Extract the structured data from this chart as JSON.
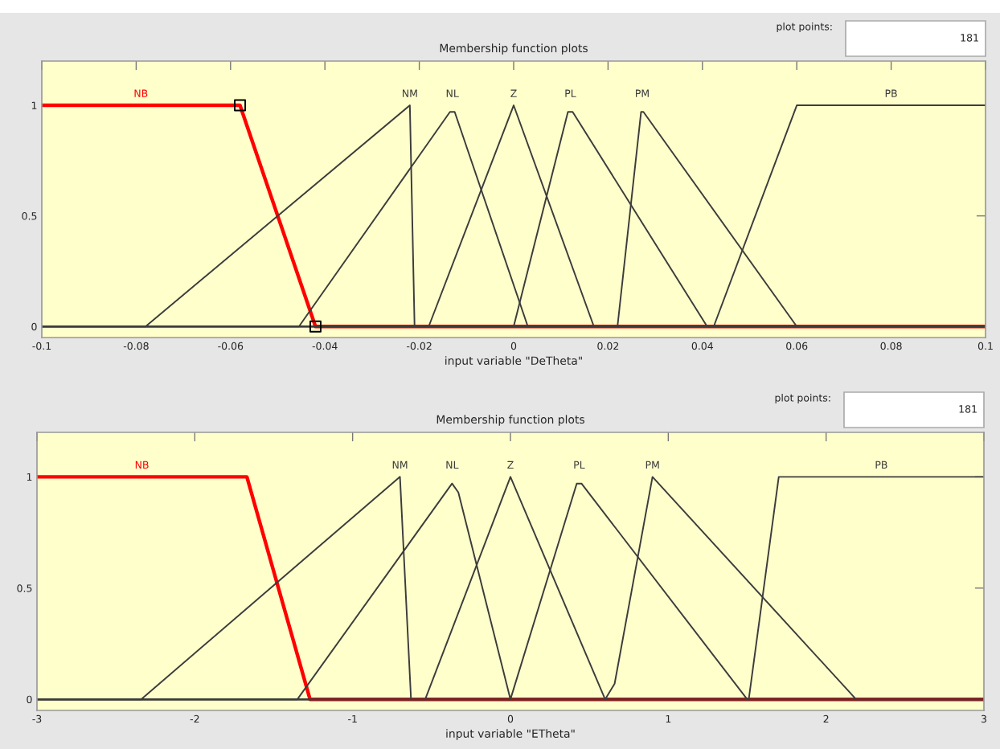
{
  "chart_data": [
    {
      "type": "line",
      "title": "Membership function plots",
      "xlabel": "input variable \"DeTheta\"",
      "xlim": [
        -0.1,
        0.1
      ],
      "xticks": [
        -0.1,
        -0.08,
        -0.06,
        -0.04,
        -0.02,
        0,
        0.02,
        0.04,
        0.06,
        0.08,
        0.1
      ],
      "ylim": [
        -0.05,
        1.2
      ],
      "yticks": [
        0,
        0.5,
        1
      ],
      "grid": false,
      "legend": false,
      "series": [
        {
          "name": "NB",
          "color": "#ff0000",
          "x": [
            -0.1,
            -0.058,
            -0.042,
            0.1
          ],
          "values": [
            1,
            1,
            0,
            0
          ]
        },
        {
          "name": "NM",
          "color": "#3c3c3c",
          "x": [
            -0.1,
            -0.078,
            -0.022,
            -0.021,
            0.1
          ],
          "values": [
            0,
            0,
            1,
            0,
            0
          ]
        },
        {
          "name": "NL",
          "color": "#3c3c3c",
          "x": [
            -0.1,
            -0.0455,
            -0.0135,
            -0.0125,
            0.003,
            0.1
          ],
          "values": [
            0,
            0,
            0.97,
            0.97,
            0,
            0
          ]
        },
        {
          "name": "Z",
          "color": "#3c3c3c",
          "x": [
            -0.1,
            -0.018,
            0,
            0.017,
            0.1
          ],
          "values": [
            0,
            0,
            1,
            0,
            0
          ]
        },
        {
          "name": "PL",
          "color": "#3c3c3c",
          "x": [
            -0.1,
            0,
            0.0115,
            0.0125,
            0.041,
            0.1
          ],
          "values": [
            0,
            0,
            0.97,
            0.97,
            0,
            0
          ]
        },
        {
          "name": "PM",
          "color": "#3c3c3c",
          "x": [
            -0.1,
            0.022,
            0.027,
            0.0275,
            0.06,
            0.1
          ],
          "values": [
            0,
            0,
            0.97,
            0.97,
            0,
            0
          ]
        },
        {
          "name": "PB",
          "color": "#3c3c3c",
          "x": [
            -0.1,
            0.0424,
            0.06,
            0.1
          ],
          "values": [
            0,
            0,
            1,
            1
          ]
        },
        {
          "type": "scatter",
          "marker": "square",
          "color": "#000000",
          "x": [
            -0.058,
            -0.042
          ],
          "values": [
            1,
            0
          ]
        }
      ],
      "annotations": [
        "plot points:",
        "181"
      ]
    },
    {
      "type": "line",
      "title": "Membership function plots",
      "xlabel": "input variable \"ETheta\"",
      "xlim": [
        -3,
        3
      ],
      "xticks": [
        -3,
        -2,
        -1,
        0,
        1,
        2,
        3
      ],
      "ylim": [
        -0.05,
        1.2
      ],
      "yticks": [
        0,
        0.5,
        1
      ],
      "grid": false,
      "legend": false,
      "series": [
        {
          "name": "NB",
          "color": "#ff0000",
          "x": [
            -3,
            -1.67,
            -1.27,
            3
          ],
          "values": [
            1,
            1,
            0,
            0
          ]
        },
        {
          "name": "NM",
          "color": "#3c3c3c",
          "x": [
            -3,
            -2.34,
            -0.7,
            -0.63,
            3
          ],
          "values": [
            0,
            0,
            1,
            0,
            0
          ]
        },
        {
          "name": "NL",
          "color": "#3c3c3c",
          "x": [
            -3,
            -1.35,
            -0.37,
            -0.33,
            0,
            3
          ],
          "values": [
            0,
            0,
            0.97,
            0.93,
            0,
            0
          ]
        },
        {
          "name": "Z",
          "color": "#3c3c3c",
          "x": [
            -3,
            -0.54,
            0,
            0.6,
            3
          ],
          "values": [
            0,
            0,
            1,
            0,
            0
          ]
        },
        {
          "name": "PL",
          "color": "#3c3c3c",
          "x": [
            -3,
            0,
            0.42,
            0.45,
            1.5,
            3
          ],
          "values": [
            0,
            0,
            0.97,
            0.97,
            0,
            0
          ]
        },
        {
          "name": "PM",
          "color": "#3c3c3c",
          "x": [
            -3,
            0.6,
            0.66,
            0.9,
            2.19,
            3
          ],
          "values": [
            0,
            0,
            0.07,
            1,
            0,
            0
          ]
        },
        {
          "name": "PB",
          "color": "#3c3c3c",
          "x": [
            -3,
            1.51,
            1.7,
            3
          ],
          "values": [
            0,
            0,
            1,
            1
          ]
        }
      ],
      "annotations": [
        "plot points:",
        "181"
      ]
    }
  ]
}
